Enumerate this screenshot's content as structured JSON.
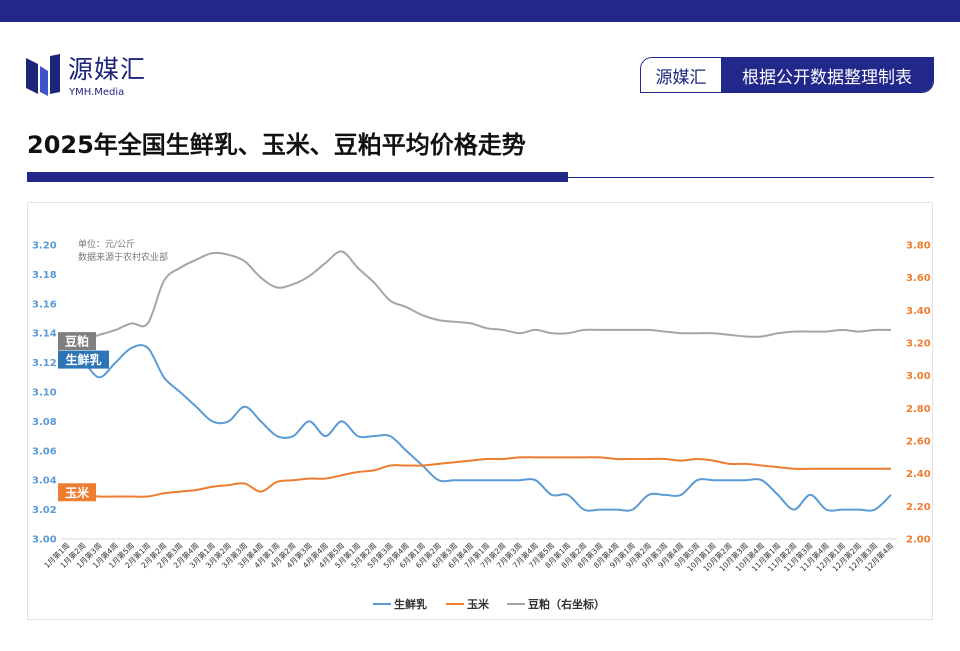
{
  "header": {
    "logo_name": "源媒汇",
    "logo_sub": "YMH.Media",
    "badge_left": "源媒汇",
    "badge_right": "根据公开数据整理制表"
  },
  "colors": {
    "navy": "#22278a",
    "milk": "#5b9bd5",
    "corn": "#ed7d31",
    "soy": "#a5a5a5",
    "left_axis": "#5b9bd5",
    "right_axis": "#ed7d31"
  },
  "chart_data": {
    "type": "line",
    "title": "2025年全国生鲜乳、玉米、豆粕平均价格走势",
    "note_unit": "单位：元/公斤",
    "note_source": "数据来源于农村农业部",
    "grid": false,
    "legend_position": "bottom",
    "y_left": {
      "min": 3.0,
      "max": 3.2,
      "ticks": [
        "3.00",
        "3.02",
        "3.04",
        "3.06",
        "3.08",
        "3.10",
        "3.12",
        "3.14",
        "3.16",
        "3.18",
        "3.20"
      ]
    },
    "y_right": {
      "min": 2.0,
      "max": 3.8,
      "ticks": [
        "2.00",
        "2.20",
        "2.40",
        "2.60",
        "2.80",
        "3.00",
        "3.20",
        "3.40",
        "3.60",
        "3.80"
      ]
    },
    "x": [
      "1月第1周",
      "1月第2周",
      "1月第3周",
      "1月第4周",
      "1月第5周",
      "2月第1周",
      "2月第2周",
      "2月第3周",
      "2月第4周",
      "3月第1周",
      "3月第2周",
      "3月第3周",
      "3月第4周",
      "4月第1周",
      "4月第2周",
      "4月第3周",
      "4月第4周",
      "4月第5周",
      "5月第1周",
      "5月第2周",
      "5月第3周",
      "5月第4周",
      "6月第1周",
      "6月第2周",
      "6月第3周",
      "6月第4周",
      "7月第1周",
      "7月第2周",
      "7月第3周",
      "7月第4周",
      "7月第5周",
      "8月第1周",
      "8月第2周",
      "8月第3周",
      "8月第4周",
      "9月第1周",
      "9月第2周",
      "9月第3周",
      "9月第4周",
      "9月第5周",
      "10月第1周",
      "10月第2周",
      "10月第3周",
      "10月第4周",
      "11月第1周",
      "11月第2周",
      "11月第3周",
      "11月第4周",
      "12月第1周",
      "12月第2周",
      "12月第3周",
      "12月第4周"
    ],
    "series": [
      {
        "name": "生鲜乳",
        "axis": "left",
        "label": "生鲜乳",
        "values": [
          3.12,
          3.12,
          3.11,
          3.12,
          3.13,
          3.13,
          3.11,
          3.1,
          3.09,
          3.08,
          3.08,
          3.09,
          3.08,
          3.07,
          3.07,
          3.08,
          3.07,
          3.08,
          3.07,
          3.07,
          3.07,
          3.06,
          3.05,
          3.04,
          3.04,
          3.04,
          3.04,
          3.04,
          3.04,
          3.04,
          3.03,
          3.03,
          3.02,
          3.02,
          3.02,
          3.02,
          3.03,
          3.03,
          3.03,
          3.04,
          3.04,
          3.04,
          3.04,
          3.04,
          3.03,
          3.02,
          3.03,
          3.02,
          3.02,
          3.02,
          3.02,
          3.03
        ]
      },
      {
        "name": "玉米",
        "axis": "right",
        "label": "玉米",
        "values": [
          2.28,
          2.27,
          2.26,
          2.26,
          2.26,
          2.26,
          2.28,
          2.29,
          2.3,
          2.32,
          2.33,
          2.34,
          2.29,
          2.35,
          2.36,
          2.37,
          2.37,
          2.39,
          2.41,
          2.42,
          2.45,
          2.45,
          2.45,
          2.46,
          2.47,
          2.48,
          2.49,
          2.49,
          2.5,
          2.5,
          2.5,
          2.5,
          2.5,
          2.5,
          2.49,
          2.49,
          2.49,
          2.49,
          2.48,
          2.49,
          2.48,
          2.46,
          2.46,
          2.45,
          2.44,
          2.43,
          2.43,
          2.43,
          2.43,
          2.43,
          2.43,
          2.43
        ]
      },
      {
        "name": "豆粕（右坐标）",
        "axis": "right",
        "label": "豆粕",
        "values": [
          3.23,
          3.22,
          3.25,
          3.28,
          3.32,
          3.32,
          3.58,
          3.66,
          3.71,
          3.75,
          3.74,
          3.7,
          3.6,
          3.54,
          3.56,
          3.61,
          3.69,
          3.76,
          3.66,
          3.57,
          3.46,
          3.42,
          3.37,
          3.34,
          3.33,
          3.32,
          3.29,
          3.28,
          3.26,
          3.28,
          3.26,
          3.26,
          3.28,
          3.28,
          3.28,
          3.28,
          3.28,
          3.27,
          3.26,
          3.26,
          3.26,
          3.25,
          3.24,
          3.24,
          3.26,
          3.27,
          3.27,
          3.27,
          3.28,
          3.27,
          3.28,
          3.28
        ]
      }
    ]
  }
}
